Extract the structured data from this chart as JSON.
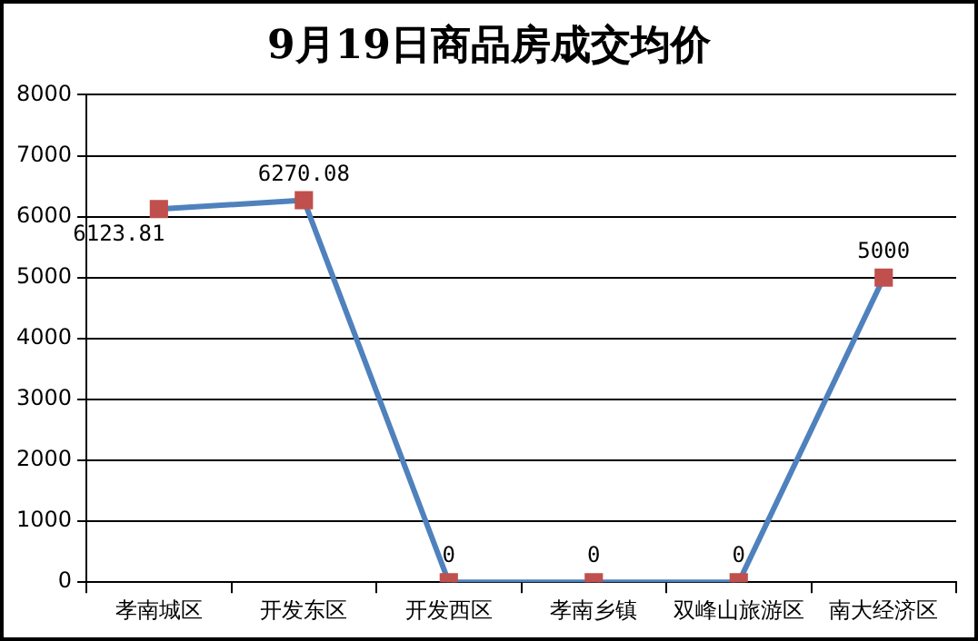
{
  "chart_data": {
    "type": "line",
    "title": "9月19日商品房成交均价",
    "categories": [
      "孝南城区",
      "开发东区",
      "开发西区",
      "孝南乡镇",
      "双峰山旅游区",
      "南大经济区"
    ],
    "series": [
      {
        "color": "#4f81bd",
        "values": [
          6123.81,
          6270.08,
          0,
          0,
          0,
          5000
        ]
      }
    ],
    "ylim": [
      0,
      8000
    ],
    "yticks": [
      0,
      1000,
      2000,
      3000,
      4000,
      5000,
      6000,
      7000,
      8000
    ],
    "grid": "y",
    "legend": false,
    "marker": "square",
    "line_style": "solid",
    "data_labels": true
  }
}
